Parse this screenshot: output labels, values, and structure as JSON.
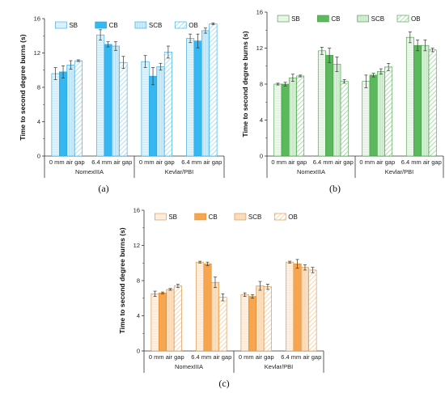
{
  "chart_data": [
    {
      "type": "bar",
      "panel_label": "(a)",
      "ylabel": "Time to second degree burns (s)",
      "ylim": [
        0,
        16
      ],
      "yticks": [
        0,
        4,
        8,
        12,
        16
      ],
      "groups": [
        "NomexIIIA",
        "Kevlar/PBI"
      ],
      "categories": [
        "0 mm air gap",
        "6.4 mm air gap",
        "0 mm air gap",
        "6.4 mm air gap"
      ],
      "legend_position": "top-right",
      "series": [
        {
          "name": "SB",
          "values": [
            9.6,
            14.1,
            11.0,
            13.7
          ],
          "errors": [
            0.7,
            0.6,
            0.7,
            0.5
          ]
        },
        {
          "name": "CB",
          "values": [
            9.8,
            13.0,
            9.3,
            13.4
          ],
          "errors": [
            0.7,
            0.3,
            1.0,
            0.8
          ]
        },
        {
          "name": "SCB",
          "values": [
            10.6,
            12.8,
            10.4,
            14.6
          ],
          "errors": [
            0.5,
            0.5,
            0.4,
            0.3
          ]
        },
        {
          "name": "OB",
          "values": [
            11.1,
            10.9,
            12.1,
            15.4
          ],
          "errors": [
            0.1,
            0.7,
            0.7,
            0.1
          ]
        }
      ]
    },
    {
      "type": "bar",
      "panel_label": "(b)",
      "ylabel": "Time to second degree burns (s)",
      "ylim": [
        0,
        16
      ],
      "yticks": [
        0,
        4,
        8,
        12,
        16
      ],
      "groups": [
        "NomexIIIA",
        "Kevlar/PBI"
      ],
      "categories": [
        "0 mm air gap",
        "6.4 mm air gap",
        "0 mm air gap",
        "6.4 mm air gap"
      ],
      "legend_position": "top-right",
      "series": [
        {
          "name": "SB",
          "values": [
            8.0,
            11.7,
            8.3,
            13.2
          ],
          "errors": [
            0.1,
            0.4,
            0.7,
            0.6
          ]
        },
        {
          "name": "CB",
          "values": [
            8.0,
            11.2,
            9.0,
            12.3
          ],
          "errors": [
            0.2,
            0.8,
            0.2,
            0.6
          ]
        },
        {
          "name": "SCB",
          "values": [
            8.7,
            10.2,
            9.4,
            12.3
          ],
          "errors": [
            0.4,
            0.8,
            0.3,
            0.6
          ]
        },
        {
          "name": "OB",
          "values": [
            8.9,
            8.3,
            9.9,
            11.8
          ],
          "errors": [
            0.1,
            0.2,
            0.4,
            0.2
          ]
        }
      ]
    },
    {
      "type": "bar",
      "panel_label": "(c)",
      "ylabel": "Time to second degree burns (s)",
      "ylim": [
        0,
        16
      ],
      "yticks": [
        0,
        4,
        8,
        12,
        16
      ],
      "groups": [
        "NomexIIIA",
        "Kevlar/PBI"
      ],
      "categories": [
        "0 mm air gap",
        "6.4 mm air gap",
        "0 mm air gap",
        "6.4 mm air gap"
      ],
      "legend_position": "top-right",
      "series": [
        {
          "name": "SB",
          "values": [
            6.5,
            10.1,
            6.4,
            10.1
          ],
          "errors": [
            0.3,
            0.1,
            0.2,
            0.1
          ]
        },
        {
          "name": "CB",
          "values": [
            6.6,
            9.9,
            6.2,
            9.9
          ],
          "errors": [
            0.1,
            0.2,
            0.2,
            0.5
          ]
        },
        {
          "name": "SCB",
          "values": [
            7.0,
            7.8,
            7.4,
            9.5
          ],
          "errors": [
            0.1,
            0.6,
            0.5,
            0.3
          ]
        },
        {
          "name": "OB",
          "values": [
            7.4,
            6.1,
            7.3,
            9.2
          ],
          "errors": [
            0.2,
            0.4,
            0.3,
            0.3
          ]
        }
      ]
    }
  ],
  "series_styles": [
    {
      "fills": [
        "#d4effb",
        "#35b7f2",
        "#bfe6f8",
        "#ffffff"
      ],
      "hatch_color": "#8fd3f2",
      "border": "#2aa5de"
    },
    {
      "fills": [
        "#e6f4e6",
        "#5cb85c",
        "#c9e9c9",
        "#ffffff"
      ],
      "hatch_color": "#8fcd8f",
      "border": "#3e9a3e"
    },
    {
      "fills": [
        "#fdebd7",
        "#f7a64f",
        "#fbd9b4",
        "#ffffff"
      ],
      "hatch_color": "#f5c58e",
      "border": "#d98a34"
    }
  ]
}
